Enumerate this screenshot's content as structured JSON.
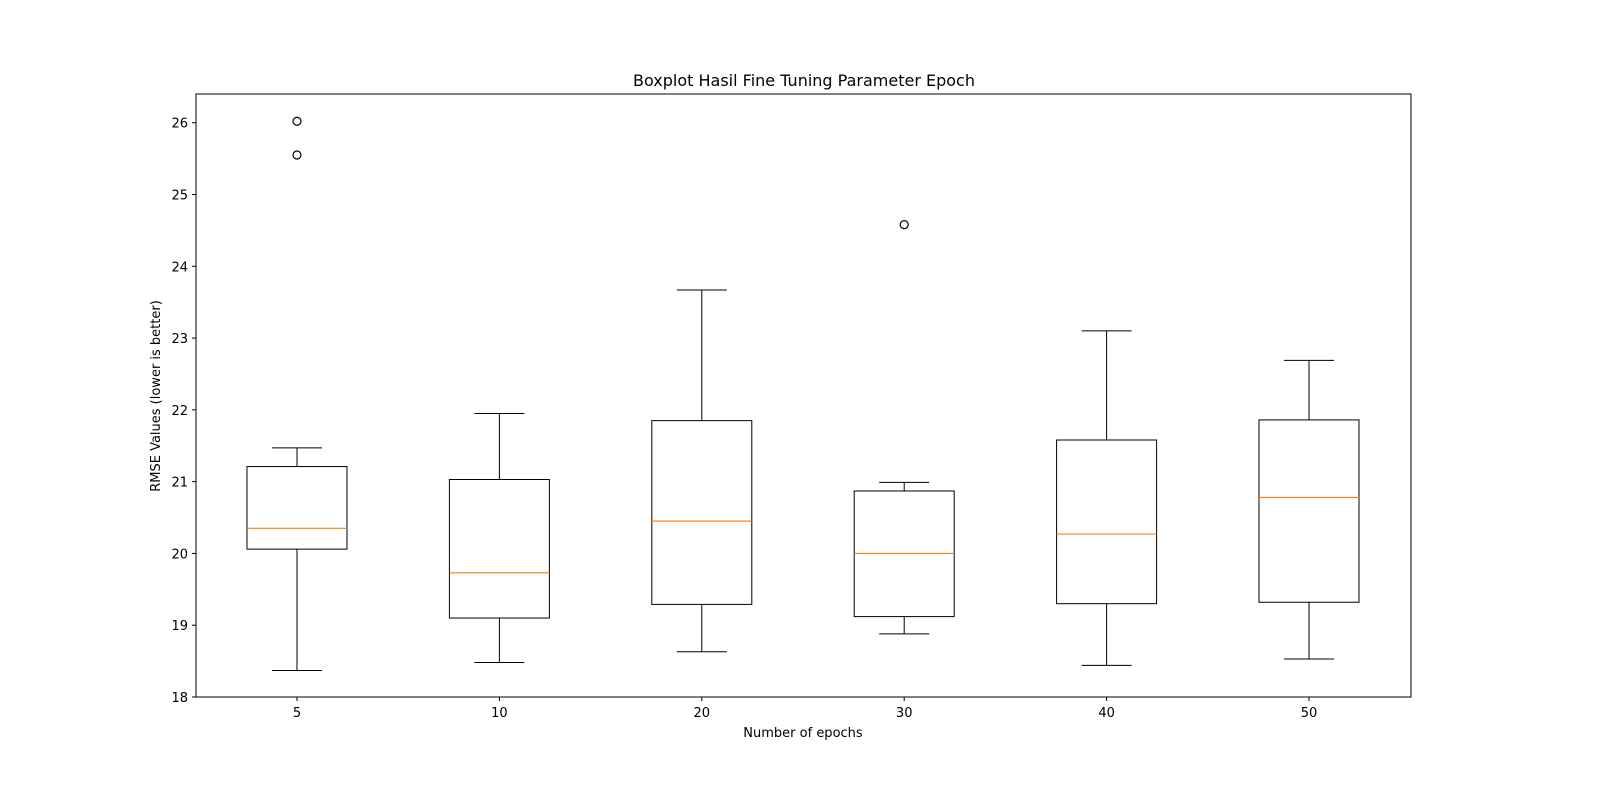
{
  "chart_data": {
    "type": "boxplot",
    "title": "Boxplot Hasil Fine Tuning Parameter Epoch",
    "xlabel": "Number of epochs",
    "ylabel": "RMSE Values (lower is better)",
    "ylim": [
      18,
      26.4
    ],
    "yticks": [
      "18",
      "19",
      "20",
      "21",
      "22",
      "23",
      "24",
      "25",
      "26"
    ],
    "grid": false,
    "box_color": "#000000",
    "median_color": "#ff7f0e",
    "boxes": [
      {
        "label": "5",
        "whisker_low": 18.37,
        "q1": 20.06,
        "median": 20.35,
        "q3": 21.21,
        "whisker_high": 21.47,
        "outliers": [
          25.55,
          26.02
        ]
      },
      {
        "label": "10",
        "whisker_low": 18.48,
        "q1": 19.1,
        "median": 19.73,
        "q3": 21.03,
        "whisker_high": 21.95,
        "outliers": []
      },
      {
        "label": "20",
        "whisker_low": 18.63,
        "q1": 19.29,
        "median": 20.45,
        "q3": 21.85,
        "whisker_high": 23.67,
        "outliers": []
      },
      {
        "label": "30",
        "whisker_low": 18.88,
        "q1": 19.12,
        "median": 20.0,
        "q3": 20.87,
        "whisker_high": 20.99,
        "outliers": [
          24.58
        ]
      },
      {
        "label": "40",
        "whisker_low": 18.44,
        "q1": 19.3,
        "median": 20.27,
        "q3": 21.58,
        "whisker_high": 23.1,
        "outliers": []
      },
      {
        "label": "50",
        "whisker_low": 18.53,
        "q1": 19.32,
        "median": 20.78,
        "q3": 21.86,
        "whisker_high": 22.69,
        "outliers": []
      }
    ]
  }
}
